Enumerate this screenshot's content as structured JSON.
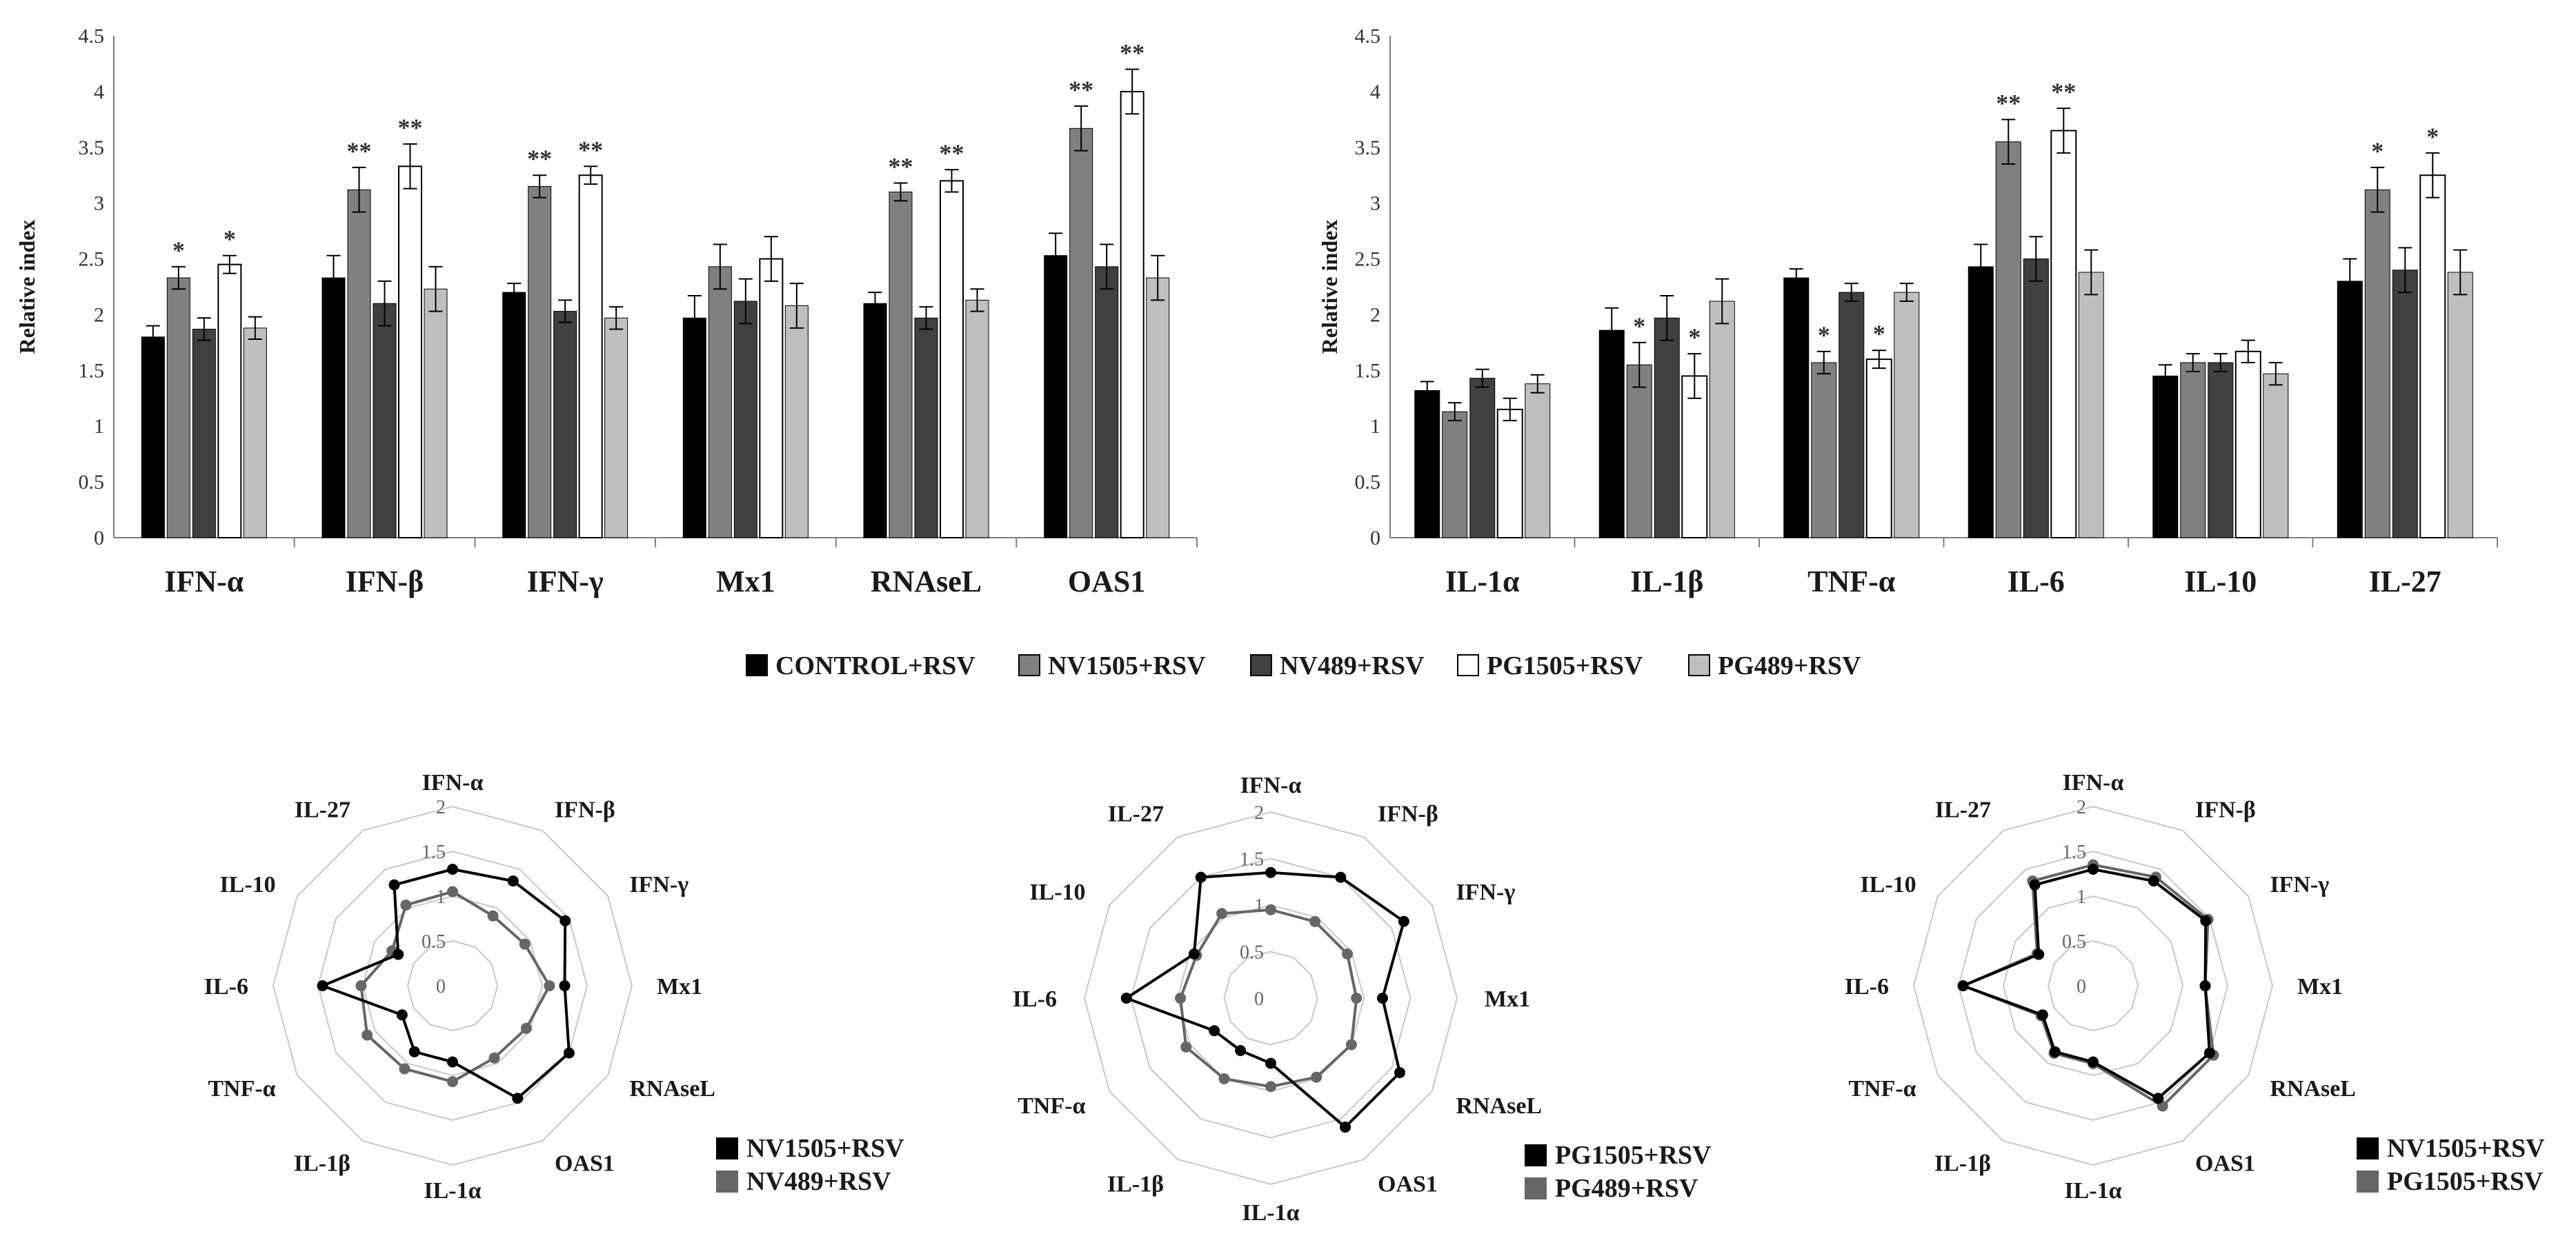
{
  "legend": [
    "CONTROL+RSV",
    "NV1505+RSV",
    "NV489+RSV",
    "PG1505+RSV",
    "PG489+RSV"
  ],
  "colors": {
    "control": "#000000",
    "nv1505": "#808080",
    "nv489": "#404040",
    "pg1505": "#ffffff",
    "pg489": "#bfbfbf",
    "radar_black": "#000000",
    "radar_gray": "#666666",
    "grid": "#c8c8c8",
    "axis": "#7f7f7f"
  },
  "chart_data": [
    {
      "type": "bar",
      "ylabel": "Relative index",
      "ylim": [
        0,
        4.5
      ],
      "yticks": [
        "0",
        "0.5",
        "1",
        "1.5",
        "2",
        "2.5",
        "3",
        "3.5",
        "4",
        "4.5"
      ],
      "categories": [
        "IFN-α",
        "IFN-β",
        "IFN-γ",
        "Mx1",
        "RNAseL",
        "OAS1"
      ],
      "series": [
        {
          "name": "CONTROL+RSV",
          "values": [
            1.8,
            2.33,
            2.2,
            1.97,
            2.1,
            2.53
          ],
          "errors": [
            0.1,
            0.2,
            0.08,
            0.2,
            0.1,
            0.2
          ]
        },
        {
          "name": "NV1505+RSV",
          "values": [
            2.33,
            3.12,
            3.15,
            2.43,
            3.1,
            3.67
          ],
          "errors": [
            0.1,
            0.2,
            0.1,
            0.2,
            0.08,
            0.2
          ]
        },
        {
          "name": "NV489+RSV",
          "values": [
            1.87,
            2.1,
            2.03,
            2.12,
            1.97,
            2.43
          ],
          "errors": [
            0.1,
            0.2,
            0.1,
            0.2,
            0.1,
            0.2
          ]
        },
        {
          "name": "PG1505+RSV",
          "values": [
            2.45,
            3.33,
            3.25,
            2.5,
            3.2,
            4.0
          ],
          "errors": [
            0.08,
            0.2,
            0.08,
            0.2,
            0.1,
            0.2
          ]
        },
        {
          "name": "PG489+RSV",
          "values": [
            1.88,
            2.23,
            1.97,
            2.08,
            2.13,
            2.33
          ],
          "errors": [
            0.1,
            0.2,
            0.1,
            0.2,
            0.1,
            0.2
          ]
        }
      ],
      "annotations": [
        {
          "category": "IFN-α",
          "series": "NV1505+RSV",
          "text": "*"
        },
        {
          "category": "IFN-α",
          "series": "PG1505+RSV",
          "text": "*"
        },
        {
          "category": "IFN-β",
          "series": "NV1505+RSV",
          "text": "**"
        },
        {
          "category": "IFN-β",
          "series": "PG1505+RSV",
          "text": "**"
        },
        {
          "category": "IFN-γ",
          "series": "NV1505+RSV",
          "text": "**"
        },
        {
          "category": "IFN-γ",
          "series": "PG1505+RSV",
          "text": "**"
        },
        {
          "category": "RNAseL",
          "series": "NV1505+RSV",
          "text": "**"
        },
        {
          "category": "RNAseL",
          "series": "PG1505+RSV",
          "text": "**"
        },
        {
          "category": "OAS1",
          "series": "NV1505+RSV",
          "text": "**"
        },
        {
          "category": "OAS1",
          "series": "PG1505+RSV",
          "text": "**"
        }
      ]
    },
    {
      "type": "bar",
      "ylabel": "Relative index",
      "ylim": [
        0,
        4.5
      ],
      "yticks": [
        "0",
        "0.5",
        "1",
        "1.5",
        "2",
        "2.5",
        "3",
        "3.5",
        "4",
        "4.5"
      ],
      "categories": [
        "IL-1α",
        "IL-1β",
        "TNF-α",
        "IL-6",
        "IL-10",
        "IL-27"
      ],
      "series": [
        {
          "name": "CONTROL+RSV",
          "values": [
            1.32,
            1.86,
            2.33,
            2.43,
            1.45,
            2.3
          ],
          "errors": [
            0.08,
            0.2,
            0.08,
            0.2,
            0.1,
            0.2
          ]
        },
        {
          "name": "NV1505+RSV",
          "values": [
            1.13,
            1.55,
            1.57,
            3.55,
            1.57,
            3.12
          ],
          "errors": [
            0.08,
            0.2,
            0.1,
            0.2,
            0.08,
            0.2
          ]
        },
        {
          "name": "NV489+RSV",
          "values": [
            1.43,
            1.97,
            2.2,
            2.5,
            1.57,
            2.4
          ],
          "errors": [
            0.08,
            0.2,
            0.08,
            0.2,
            0.08,
            0.2
          ]
        },
        {
          "name": "PG1505+RSV",
          "values": [
            1.15,
            1.45,
            1.6,
            3.65,
            1.67,
            3.25
          ],
          "errors": [
            0.1,
            0.2,
            0.08,
            0.2,
            0.1,
            0.2
          ]
        },
        {
          "name": "PG489+RSV",
          "values": [
            1.38,
            2.12,
            2.2,
            2.38,
            1.47,
            2.38
          ],
          "errors": [
            0.08,
            0.2,
            0.08,
            0.2,
            0.1,
            0.2
          ]
        }
      ],
      "annotations": [
        {
          "category": "IL-1β",
          "series": "NV1505+RSV",
          "text": "*"
        },
        {
          "category": "IL-1β",
          "series": "PG1505+RSV",
          "text": "*"
        },
        {
          "category": "TNF-α",
          "series": "NV1505+RSV",
          "text": "*"
        },
        {
          "category": "TNF-α",
          "series": "PG1505+RSV",
          "text": "*"
        },
        {
          "category": "IL-6",
          "series": "NV1505+RSV",
          "text": "**"
        },
        {
          "category": "IL-6",
          "series": "PG1505+RSV",
          "text": "**"
        },
        {
          "category": "IL-27",
          "series": "NV1505+RSV",
          "text": "*"
        },
        {
          "category": "IL-27",
          "series": "PG1505+RSV",
          "text": "*"
        }
      ]
    },
    {
      "type": "radar",
      "axes": [
        "IFN-α",
        "IFN-β",
        "IFN-γ",
        "Mx1",
        "RNAseL",
        "OAS1",
        "IL-1α",
        "IL-1β",
        "TNF-α",
        "IL-6",
        "IL-10",
        "IL-27"
      ],
      "rlim": [
        0,
        2
      ],
      "rticks": [
        "0",
        "0.5",
        "1",
        "1.5",
        "2"
      ],
      "series": [
        {
          "name": "NV1505+RSV",
          "color": "#000000",
          "values": [
            1.3,
            1.35,
            1.45,
            1.25,
            1.5,
            1.45,
            0.85,
            0.85,
            0.65,
            1.45,
            0.7,
            1.3
          ]
        },
        {
          "name": "NV489+RSV",
          "color": "#666666",
          "values": [
            1.05,
            0.9,
            0.93,
            1.08,
            0.95,
            0.93,
            1.07,
            1.07,
            1.1,
            1.02,
            0.78,
            1.04
          ]
        }
      ]
    },
    {
      "type": "radar",
      "axes": [
        "IFN-α",
        "IFN-β",
        "IFN-γ",
        "Mx1",
        "RNAseL",
        "OAS1",
        "IL-1α",
        "IL-1β",
        "TNF-α",
        "IL-6",
        "IL-10",
        "IL-27"
      ],
      "rlim": [
        0,
        2
      ],
      "rticks": [
        "0",
        "0.5",
        "1",
        "1.5",
        "2"
      ],
      "series": [
        {
          "name": "PG1505+RSV",
          "color": "#000000",
          "values": [
            1.35,
            1.5,
            1.65,
            1.2,
            1.6,
            1.6,
            0.7,
            0.65,
            0.7,
            1.55,
            0.95,
            1.5
          ]
        },
        {
          "name": "PG489+RSV",
          "color": "#666666",
          "values": [
            0.95,
            0.95,
            0.95,
            0.92,
            1.0,
            0.98,
            0.95,
            1.0,
            1.05,
            0.97,
            0.92,
            1.05
          ]
        }
      ]
    },
    {
      "type": "radar",
      "axes": [
        "IFN-α",
        "IFN-β",
        "IFN-γ",
        "Mx1",
        "RNAseL",
        "OAS1",
        "IL-1α",
        "IL-1β",
        "TNF-α",
        "IL-6",
        "IL-10",
        "IL-27"
      ],
      "rlim": [
        0,
        2
      ],
      "rticks": [
        "0",
        "0.5",
        "1",
        "1.5",
        "2"
      ],
      "series": [
        {
          "name": "NV1505+RSV",
          "color": "#000000",
          "values": [
            1.3,
            1.35,
            1.45,
            1.25,
            1.5,
            1.45,
            0.85,
            0.85,
            0.65,
            1.45,
            0.7,
            1.3
          ]
        },
        {
          "name": "PG1505+RSV",
          "color": "#666666",
          "values": [
            1.35,
            1.4,
            1.48,
            1.25,
            1.55,
            1.55,
            0.87,
            0.87,
            0.67,
            1.45,
            0.72,
            1.35
          ]
        }
      ]
    }
  ]
}
